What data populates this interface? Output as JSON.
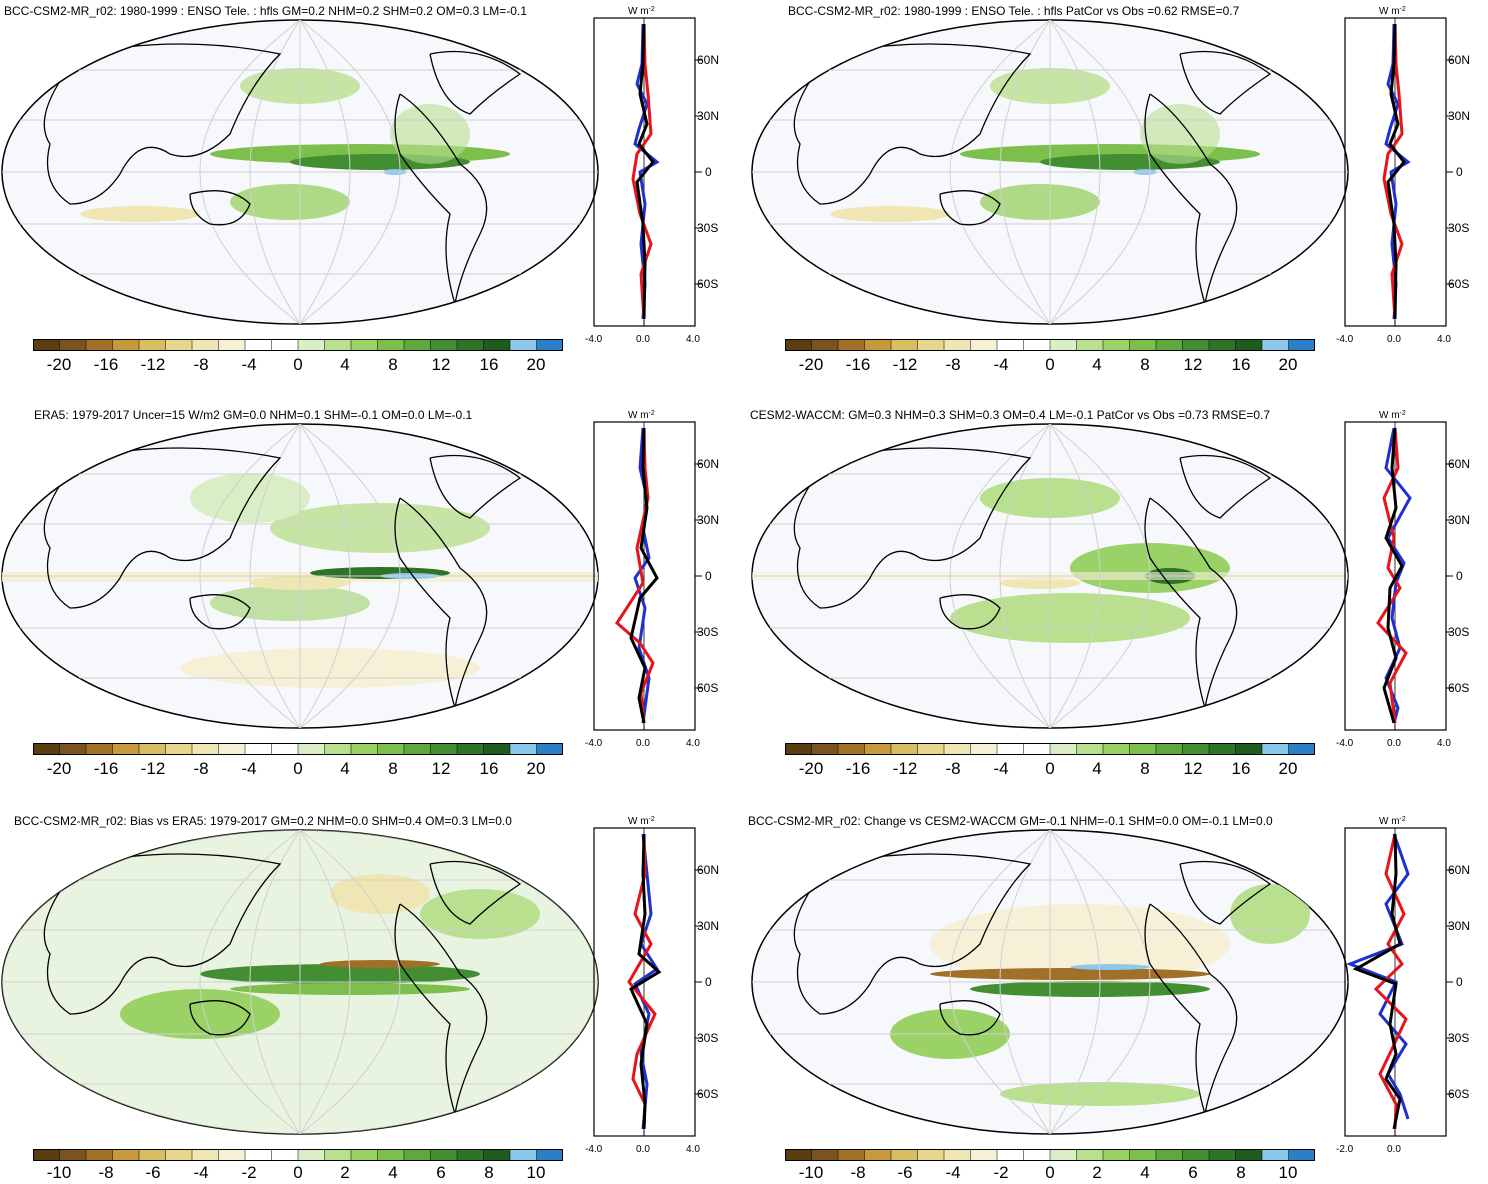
{
  "colors": [
    "#5a3d12",
    "#7a5320",
    "#a06f28",
    "#c69a3a",
    "#d8bd62",
    "#e6d68e",
    "#efe6b4",
    "#f6f1d6",
    "#ffffff",
    "#ffffff",
    "#d9eec4",
    "#b9e08f",
    "#9bd267",
    "#7dbf4c",
    "#5fa83d",
    "#438e33",
    "#2f7327",
    "#1e5b1e",
    "#8cc8ec",
    "#2b7fc6"
  ],
  "units": "W m",
  "units_exp": "-2",
  "panels": [
    {
      "title": "BCC-CSM2-MR_r02: 1980-1999 : ENSO Tele. : hfls GM=0.2 NHM=0.2 SHM=0.2 OM=0.3 LM=-0.1",
      "cb_labels": [
        "-20",
        "-16",
        "-12",
        "-8",
        "-4",
        "0",
        "4",
        "8",
        "12",
        "16",
        "20"
      ],
      "lat_labels": [
        "60N",
        "30N",
        "0",
        "30S",
        "60S"
      ],
      "x_labels": [
        "-4.0",
        "0.0",
        "4.0"
      ]
    },
    {
      "title": "BCC-CSM2-MR_r02: 1980-1999 : ENSO Tele. : hfls PatCor vs Obs =0.62 RMSE=0.7",
      "cb_labels": [
        "-20",
        "-16",
        "-12",
        "-8",
        "-4",
        "0",
        "4",
        "8",
        "12",
        "16",
        "20"
      ],
      "lat_labels": [
        "60N",
        "30N",
        "0",
        "30S",
        "60S"
      ],
      "x_labels": [
        "-4.0",
        "0.0",
        "4.0"
      ]
    },
    {
      "title": "ERA5: 1979-2017 Uncer=15 W/m2 GM=0.0 NHM=0.1 SHM=-0.1 OM=0.0 LM=-0.1",
      "cb_labels": [
        "-20",
        "-16",
        "-12",
        "-8",
        "-4",
        "0",
        "4",
        "8",
        "12",
        "16",
        "20"
      ],
      "lat_labels": [
        "60N",
        "30N",
        "0",
        "30S",
        "60S"
      ],
      "x_labels": [
        "-4.0",
        "0.0",
        "4.0"
      ]
    },
    {
      "title": "CESM2-WACCM: GM=0.3 NHM=0.3 SHM=0.3 OM=0.4 LM=-0.1 PatCor vs Obs =0.73 RMSE=0.7",
      "cb_labels": [
        "-20",
        "-16",
        "-12",
        "-8",
        "-4",
        "0",
        "4",
        "8",
        "12",
        "16",
        "20"
      ],
      "lat_labels": [
        "60N",
        "30N",
        "0",
        "30S",
        "60S"
      ],
      "x_labels": [
        "-4.0",
        "0.0",
        "4.0"
      ]
    },
    {
      "title": "BCC-CSM2-MR_r02: Bias vs ERA5: 1979-2017 GM=0.2 NHM=0.0 SHM=0.4 OM=0.3 LM=0.0",
      "cb_labels": [
        "-10",
        "-8",
        "-6",
        "-4",
        "-2",
        "0",
        "2",
        "4",
        "6",
        "8",
        "10"
      ],
      "lat_labels": [
        "60N",
        "30N",
        "0",
        "30S",
        "60S"
      ],
      "x_labels": [
        "-4.0",
        "0.0",
        "4.0"
      ]
    },
    {
      "title": "BCC-CSM2-MR_r02: Change vs CESM2-WACCM GM=-0.1 NHM=-0.1 SHM=0.0 OM=-0.1 LM=0.0",
      "cb_labels": [
        "-10",
        "-8",
        "-6",
        "-4",
        "-2",
        "0",
        "2",
        "4",
        "6",
        "8",
        "10"
      ],
      "lat_labels": [
        "60N",
        "30N",
        "0",
        "30S",
        "60S"
      ],
      "x_labels": [
        "-2.0",
        "0.0"
      ]
    }
  ]
}
